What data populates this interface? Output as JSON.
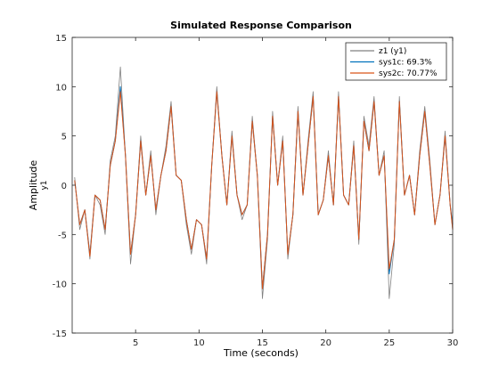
{
  "chart_data": {
    "type": "line",
    "title": "Simulated Response Comparison",
    "xlabel": "Time (seconds)",
    "ylabel": "Amplitude",
    "channel_label": "y1",
    "xlim": [
      0,
      30
    ],
    "ylim": [
      -15,
      15
    ],
    "xticks": [
      5,
      10,
      15,
      20,
      25,
      30
    ],
    "yticks": [
      -15,
      -10,
      -5,
      0,
      5,
      10,
      15
    ],
    "grid": false,
    "legend_position": "top-right",
    "series": [
      {
        "name": "z1 (y1)",
        "color": "#808080",
        "x": [
          0.2,
          0.6,
          1.0,
          1.4,
          1.8,
          2.2,
          2.6,
          3.0,
          3.4,
          3.8,
          4.2,
          4.6,
          5.0,
          5.4,
          5.8,
          6.2,
          6.6,
          7.0,
          7.4,
          7.8,
          8.2,
          8.6,
          9.0,
          9.4,
          9.8,
          10.2,
          10.6,
          11.0,
          11.4,
          11.8,
          12.2,
          12.6,
          13.0,
          13.4,
          13.8,
          14.2,
          14.6,
          15.0,
          15.4,
          15.8,
          16.2,
          16.6,
          17.0,
          17.4,
          17.8,
          18.2,
          18.6,
          19.0,
          19.4,
          19.8,
          20.2,
          20.6,
          21.0,
          21.4,
          21.8,
          22.2,
          22.6,
          23.0,
          23.4,
          23.8,
          24.2,
          24.6,
          25.0,
          25.4,
          25.8,
          26.2,
          26.6,
          27.0,
          27.4,
          27.8,
          28.2,
          28.6,
          29.0,
          29.4,
          29.8,
          30.0
        ],
        "values": [
          0.8,
          -4.5,
          -2.5,
          -7.5,
          -1.0,
          -2.0,
          -5.0,
          2.5,
          5.0,
          12.0,
          3.0,
          -8.0,
          -3.0,
          5.0,
          -1.0,
          3.5,
          -3.0,
          1.0,
          4.0,
          8.5,
          1.0,
          0.5,
          -4.0,
          -7.0,
          -3.5,
          -4.0,
          -8.0,
          2.0,
          10.0,
          3.0,
          -2.0,
          5.5,
          -1.0,
          -3.5,
          -2.0,
          7.0,
          1.0,
          -11.5,
          -5.5,
          7.5,
          0.0,
          5.0,
          -7.5,
          -3.0,
          8.0,
          -1.0,
          4.5,
          9.5,
          -3.0,
          -1.5,
          3.5,
          -2.0,
          9.5,
          -1.0,
          -2.0,
          4.5,
          -6.0,
          7.0,
          4.0,
          9.0,
          1.0,
          3.5,
          -11.5,
          -6.0,
          9.0,
          -1.0,
          1.0,
          -3.0,
          3.5,
          8.0,
          2.5,
          -4.0,
          -1.0,
          5.5,
          -2.0,
          -4.5
        ]
      },
      {
        "name": "sys1c: 69.3%",
        "color": "#0072bd",
        "x": [
          0.2,
          0.6,
          1.0,
          1.4,
          1.8,
          2.2,
          2.6,
          3.0,
          3.4,
          3.8,
          4.2,
          4.6,
          5.0,
          5.4,
          5.8,
          6.2,
          6.6,
          7.0,
          7.4,
          7.8,
          8.2,
          8.6,
          9.0,
          9.4,
          9.8,
          10.2,
          10.6,
          11.0,
          11.4,
          11.8,
          12.2,
          12.6,
          13.0,
          13.4,
          13.8,
          14.2,
          14.6,
          15.0,
          15.4,
          15.8,
          16.2,
          16.6,
          17.0,
          17.4,
          17.8,
          18.2,
          18.6,
          19.0,
          19.4,
          19.8,
          20.2,
          20.6,
          21.0,
          21.4,
          21.8,
          22.2,
          22.6,
          23.0,
          23.4,
          23.8,
          24.2,
          24.6,
          25.0,
          25.4,
          25.8,
          26.2,
          26.6,
          27.0,
          27.4,
          27.8,
          28.2,
          28.6,
          29.0,
          29.4,
          29.8,
          30.0
        ],
        "values": [
          0.5,
          -4.0,
          -2.5,
          -7.0,
          -1.0,
          -1.5,
          -4.5,
          2.0,
          4.5,
          10.0,
          3.0,
          -7.0,
          -3.0,
          4.5,
          -1.0,
          3.0,
          -2.5,
          1.0,
          3.5,
          8.0,
          1.0,
          0.5,
          -3.5,
          -6.5,
          -3.5,
          -4.0,
          -7.5,
          2.0,
          9.5,
          3.0,
          -2.0,
          5.0,
          -1.0,
          -3.0,
          -2.0,
          6.5,
          1.0,
          -10.5,
          -5.0,
          7.0,
          0.0,
          4.5,
          -7.0,
          -3.0,
          7.5,
          -1.0,
          4.0,
          9.0,
          -3.0,
          -1.5,
          3.0,
          -2.0,
          9.0,
          -1.0,
          -2.0,
          4.0,
          -5.5,
          6.5,
          3.5,
          8.5,
          1.0,
          3.0,
          -9.0,
          -5.5,
          8.5,
          -1.0,
          1.0,
          -3.0,
          3.0,
          7.5,
          2.0,
          -4.0,
          -1.0,
          5.0,
          -2.0,
          -4.0
        ]
      },
      {
        "name": "sys2c: 70.77%",
        "color": "#d95319",
        "x": [
          0.2,
          0.6,
          1.0,
          1.4,
          1.8,
          2.2,
          2.6,
          3.0,
          3.4,
          3.8,
          4.2,
          4.6,
          5.0,
          5.4,
          5.8,
          6.2,
          6.6,
          7.0,
          7.4,
          7.8,
          8.2,
          8.6,
          9.0,
          9.4,
          9.8,
          10.2,
          10.6,
          11.0,
          11.4,
          11.8,
          12.2,
          12.6,
          13.0,
          13.4,
          13.8,
          14.2,
          14.6,
          15.0,
          15.4,
          15.8,
          16.2,
          16.6,
          17.0,
          17.4,
          17.8,
          18.2,
          18.6,
          19.0,
          19.4,
          19.8,
          20.2,
          20.6,
          21.0,
          21.4,
          21.8,
          22.2,
          22.6,
          23.0,
          23.4,
          23.8,
          24.2,
          24.6,
          25.0,
          25.4,
          25.8,
          26.2,
          26.6,
          27.0,
          27.4,
          27.8,
          28.2,
          28.6,
          29.0,
          29.4,
          29.8,
          30.0
        ],
        "values": [
          0.5,
          -4.0,
          -2.5,
          -7.2,
          -1.0,
          -1.5,
          -4.5,
          2.0,
          4.5,
          9.5,
          3.0,
          -7.0,
          -3.0,
          4.5,
          -1.0,
          3.0,
          -2.5,
          1.0,
          3.5,
          8.0,
          1.0,
          0.5,
          -3.5,
          -6.5,
          -3.5,
          -4.0,
          -7.5,
          2.0,
          9.5,
          3.0,
          -2.0,
          5.0,
          -1.0,
          -3.0,
          -2.0,
          6.5,
          1.0,
          -10.5,
          -5.0,
          7.0,
          0.0,
          4.5,
          -7.0,
          -3.0,
          7.5,
          -1.0,
          4.0,
          9.0,
          -3.0,
          -1.5,
          3.0,
          -2.0,
          9.0,
          -1.0,
          -2.0,
          4.0,
          -5.5,
          6.5,
          3.5,
          8.5,
          1.0,
          3.0,
          -8.5,
          -5.5,
          8.5,
          -1.0,
          1.0,
          -3.0,
          3.0,
          7.5,
          2.0,
          -4.0,
          -1.0,
          5.0,
          -2.0,
          -4.5
        ]
      }
    ]
  }
}
